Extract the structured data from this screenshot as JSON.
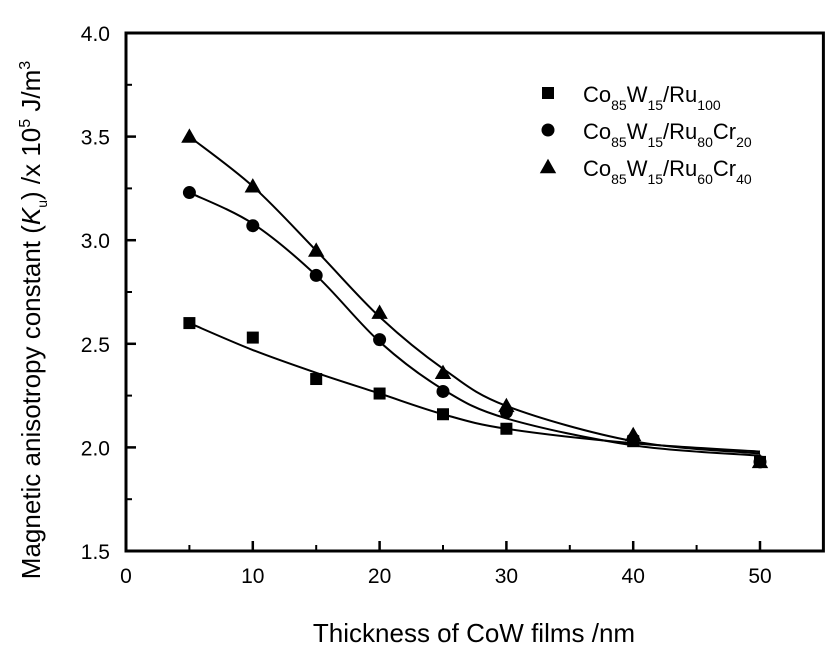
{
  "chart_data": {
    "type": "scatter",
    "title": "",
    "xlabel": "Thickness of CoW films /nm",
    "ylabel": {
      "main": "Magnetic anisotropy constant (",
      "symbol": "K",
      "symbol_sub": "u",
      "units_pre": ") /x 10",
      "units_sup": "5",
      "units_mid": " J/m",
      "units_sup2": "3"
    },
    "xlim": [
      0,
      55
    ],
    "ylim": [
      1.5,
      4.0
    ],
    "xticks": [
      0,
      10,
      20,
      30,
      40,
      50
    ],
    "xticks_minor": [
      5,
      15,
      25,
      35,
      45
    ],
    "yticks": [
      1.5,
      2.0,
      2.5,
      3.0,
      3.5,
      4.0
    ],
    "ytick_labels": [
      "1.5",
      "2.0",
      "2.5",
      "3.0",
      "3.5",
      "4.0"
    ],
    "yticks_minor": [
      1.75,
      2.25,
      2.75,
      3.25,
      3.75
    ],
    "grid": false,
    "legend_position": "top-right",
    "x": [
      5,
      10,
      15,
      20,
      25,
      30,
      40,
      50
    ],
    "series": [
      {
        "name": "Co85W15/Ru100",
        "legend": [
          {
            "t": "Co",
            "s": "85"
          },
          {
            "t": "W",
            "s": "15"
          },
          {
            "t": "/Ru",
            "s": "100"
          }
        ],
        "marker": "square",
        "values": [
          2.6,
          2.53,
          2.33,
          2.26,
          2.16,
          2.09,
          2.03,
          1.93
        ],
        "fit": [
          2.6,
          2.47,
          2.36,
          2.26,
          2.16,
          2.09,
          2.02,
          1.98
        ]
      },
      {
        "name": "Co85W15/Ru80Cr20",
        "legend": [
          {
            "t": "Co",
            "s": "85"
          },
          {
            "t": "W",
            "s": "15"
          },
          {
            "t": "/Ru",
            "s": "80"
          },
          {
            "t": "Cr",
            "s": "20"
          }
        ],
        "marker": "circle",
        "values": [
          3.23,
          3.07,
          2.83,
          2.52,
          2.27,
          2.17,
          2.04,
          1.93
        ],
        "fit": [
          3.23,
          3.08,
          2.83,
          2.51,
          2.28,
          2.14,
          2.01,
          1.96
        ]
      },
      {
        "name": "Co85W15/Ru60Cr40",
        "legend": [
          {
            "t": "Co",
            "s": "85"
          },
          {
            "t": "W",
            "s": "15"
          },
          {
            "t": "/Ru",
            "s": "60"
          },
          {
            "t": "Cr",
            "s": "40"
          }
        ],
        "marker": "triangle",
        "values": [
          3.5,
          3.26,
          2.95,
          2.65,
          2.36,
          2.2,
          2.06,
          1.93
        ],
        "fit": [
          3.5,
          3.26,
          2.95,
          2.63,
          2.38,
          2.2,
          2.03,
          1.97
        ]
      }
    ],
    "colors": {
      "ink": "#000000",
      "background": "#ffffff"
    }
  }
}
